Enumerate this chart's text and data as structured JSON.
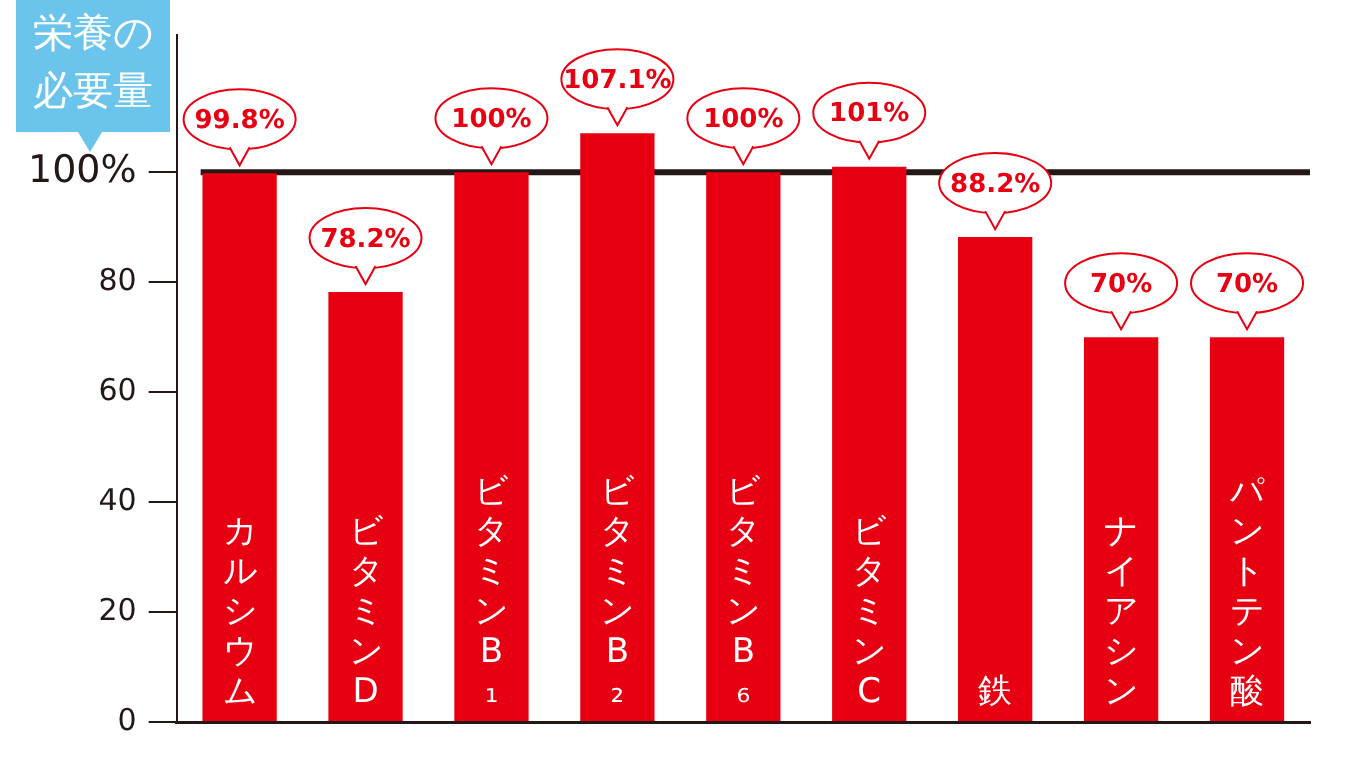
{
  "chart_data": {
    "type": "bar",
    "categories": [
      "カルシウム",
      "ビタミンD",
      "ビタミンB₁",
      "ビタミンB₂",
      "ビタミンB₆",
      "ビタミンC",
      "鉄",
      "ナイアシン",
      "パントテン酸"
    ],
    "values": [
      99.8,
      78.2,
      100,
      107.1,
      100,
      101,
      88.2,
      70,
      70
    ],
    "value_labels": [
      "99.8%",
      "78.2%",
      "100%",
      "107.1%",
      "100%",
      "101%",
      "88.2%",
      "70%",
      "70%"
    ],
    "color": "#e60012",
    "ylim": [
      0,
      125
    ],
    "yticks": [
      0,
      20,
      40,
      60,
      80,
      {
        "value": 100,
        "label": "100%"
      }
    ],
    "ref_lines": [
      {
        "axis": "y",
        "value": 100,
        "label": "栄養の必要量",
        "color": "#231815"
      }
    ],
    "grid": false,
    "legend": false
  }
}
